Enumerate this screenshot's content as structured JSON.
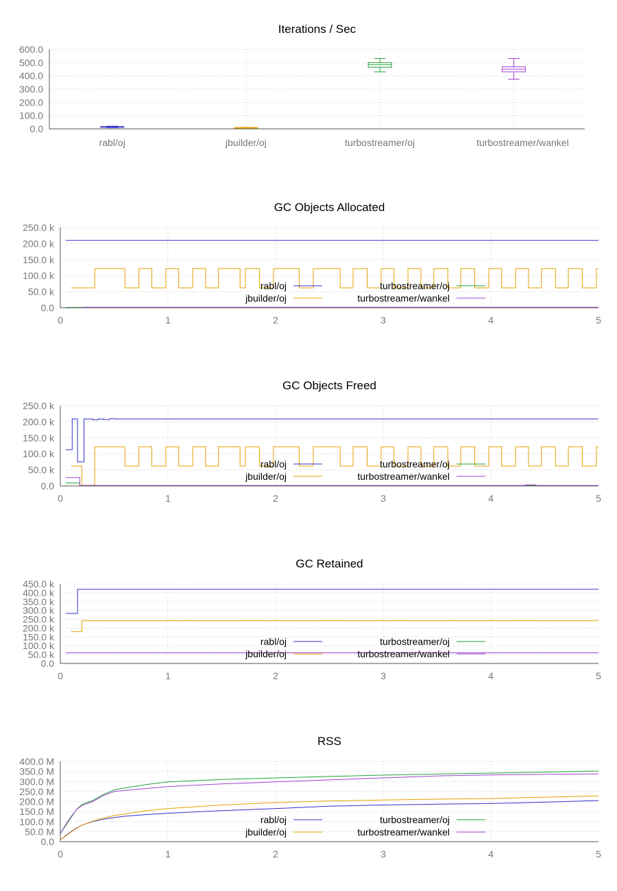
{
  "chart_data": [
    {
      "type": "box",
      "title": "Iterations / Sec",
      "categories": [
        "rabl/oj",
        "jbuilder/oj",
        "turbostreamer/oj",
        "turbostreamer/wankel"
      ],
      "colors": [
        "#3030c8",
        "#e6a000",
        "#22a035",
        "#a040d0"
      ],
      "ylim": [
        0,
        600
      ],
      "yticks": [
        "0.0",
        "100.0",
        "200.0",
        "300.0",
        "400.0",
        "500.0",
        "600.0"
      ],
      "ytick_values": [
        0,
        100,
        200,
        300,
        400,
        500,
        600
      ],
      "boxes": [
        {
          "min": 10,
          "q1": 14,
          "median": 15,
          "q3": 17,
          "max": 20
        },
        {
          "min": 7,
          "q1": 8,
          "median": 9,
          "q3": 10,
          "max": 11
        },
        {
          "min": 430,
          "q1": 465,
          "median": 485,
          "q3": 500,
          "max": 530
        },
        {
          "min": 375,
          "q1": 430,
          "median": 450,
          "q3": 468,
          "max": 530
        }
      ]
    },
    {
      "type": "line",
      "title": "GC Objects Allocated",
      "xlim": [
        0,
        5
      ],
      "xticks": [
        "0",
        "1",
        "2",
        "3",
        "4",
        "5"
      ],
      "ylim": [
        0,
        250000
      ],
      "ytick_values": [
        0,
        50000,
        100000,
        150000,
        200000,
        250000
      ],
      "yticks": [
        "0.0",
        "50.0 k",
        "100.0 k",
        "150.0 k",
        "200.0 k",
        "250.0 k"
      ],
      "legend": [
        "rabl/oj",
        "jbuilder/oj",
        "turbostreamer/oj",
        "turbostreamer/wankel"
      ],
      "series": [
        {
          "name": "rabl/oj",
          "color": "#3030c8",
          "x": [
            0.05,
            5.0
          ],
          "y": [
            210000,
            210000
          ]
        },
        {
          "name": "jbuilder/oj",
          "color": "#e6a000",
          "x": [
            0.1,
            0.32,
            0.32,
            0.6,
            0.6,
            0.73,
            0.73,
            0.85,
            0.85,
            0.98,
            0.98,
            1.1,
            1.1,
            1.23,
            1.23,
            1.35,
            1.35,
            1.47,
            1.47,
            1.67,
            1.67,
            1.72,
            1.72,
            1.85,
            1.85,
            1.98,
            1.98,
            2.22,
            2.22,
            2.35,
            2.35,
            2.6,
            2.6,
            2.72,
            2.72,
            2.85,
            2.85,
            2.98,
            2.98,
            3.1,
            3.1,
            3.23,
            3.23,
            3.35,
            3.35,
            3.47,
            3.47,
            3.6,
            3.6,
            3.72,
            3.72,
            3.85,
            3.85,
            3.98,
            3.98,
            4.1,
            4.1,
            4.23,
            4.23,
            4.35,
            4.35,
            4.47,
            4.47,
            4.6,
            4.6,
            4.72,
            4.72,
            4.85,
            4.85,
            4.98,
            4.98,
            5.0
          ],
          "y": [
            62000,
            62000,
            122000,
            122000,
            62000,
            62000,
            122000,
            122000,
            62000,
            62000,
            122000,
            122000,
            62000,
            62000,
            122000,
            122000,
            62000,
            62000,
            122000,
            122000,
            62000,
            62000,
            122000,
            122000,
            62000,
            62000,
            122000,
            122000,
            62000,
            62000,
            122000,
            122000,
            62000,
            62000,
            122000,
            122000,
            62000,
            62000,
            122000,
            122000,
            62000,
            62000,
            122000,
            122000,
            62000,
            62000,
            122000,
            122000,
            62000,
            62000,
            122000,
            122000,
            62000,
            62000,
            122000,
            122000,
            62000,
            62000,
            122000,
            122000,
            62000,
            62000,
            122000,
            122000,
            62000,
            62000,
            122000,
            122000,
            62000,
            62000,
            122000,
            122000
          ]
        },
        {
          "name": "turbostreamer/oj",
          "color": "#22a035",
          "x": [
            0.05,
            5.0
          ],
          "y": [
            1000,
            1000
          ]
        },
        {
          "name": "turbostreamer/wankel",
          "color": "#a040d0",
          "x": [
            0.2,
            5.0
          ],
          "y": [
            1500,
            1500
          ]
        }
      ]
    },
    {
      "type": "line",
      "title": "GC Objects Freed",
      "xlim": [
        0,
        5
      ],
      "xticks": [
        "0",
        "1",
        "2",
        "3",
        "4",
        "5"
      ],
      "ylim": [
        0,
        250000
      ],
      "ytick_values": [
        0,
        50000,
        100000,
        150000,
        200000,
        250000
      ],
      "yticks": [
        "0.0",
        "50.0 k",
        "100.0 k",
        "150.0 k",
        "200.0 k",
        "250.0 k"
      ],
      "legend": [
        "rabl/oj",
        "jbuilder/oj",
        "turbostreamer/oj",
        "turbostreamer/wankel"
      ],
      "series": [
        {
          "name": "rabl/oj",
          "color": "#3030c8",
          "x": [
            0.05,
            0.11,
            0.11,
            0.16,
            0.16,
            0.22,
            0.22,
            0.3,
            0.3,
            0.35,
            0.35,
            0.4,
            0.4,
            0.46,
            0.46,
            0.5,
            0.5,
            5.0
          ],
          "y": [
            113000,
            113000,
            209000,
            209000,
            75000,
            75000,
            209000,
            209000,
            206000,
            206000,
            209000,
            209000,
            207000,
            207000,
            210000,
            210000,
            209000,
            209000
          ]
        },
        {
          "name": "jbuilder/oj",
          "color": "#e6a000",
          "x": [
            0.1,
            0.2,
            0.2,
            0.32,
            0.32,
            0.6,
            0.6,
            0.73,
            0.73,
            0.85,
            0.85,
            0.98,
            0.98,
            1.1,
            1.1,
            1.23,
            1.23,
            1.35,
            1.35,
            1.47,
            1.47,
            1.67,
            1.67,
            1.72,
            1.72,
            1.85,
            1.85,
            1.98,
            1.98,
            2.22,
            2.22,
            2.35,
            2.35,
            2.6,
            2.6,
            2.72,
            2.72,
            2.85,
            2.85,
            2.98,
            2.98,
            3.1,
            3.1,
            3.23,
            3.23,
            3.35,
            3.35,
            3.47,
            3.47,
            3.6,
            3.6,
            3.72,
            3.72,
            3.85,
            3.85,
            3.98,
            3.98,
            4.1,
            4.1,
            4.23,
            4.23,
            4.35,
            4.35,
            4.47,
            4.47,
            4.6,
            4.6,
            4.72,
            4.72,
            4.85,
            4.85,
            4.98,
            4.98,
            5.0
          ],
          "y": [
            62000,
            62000,
            2000,
            2000,
            122000,
            122000,
            62000,
            62000,
            122000,
            122000,
            62000,
            62000,
            122000,
            122000,
            62000,
            62000,
            122000,
            122000,
            62000,
            62000,
            122000,
            122000,
            62000,
            62000,
            122000,
            122000,
            62000,
            62000,
            122000,
            122000,
            62000,
            62000,
            122000,
            122000,
            62000,
            62000,
            122000,
            122000,
            62000,
            62000,
            122000,
            122000,
            62000,
            62000,
            122000,
            122000,
            62000,
            62000,
            122000,
            122000,
            62000,
            62000,
            122000,
            122000,
            62000,
            62000,
            122000,
            122000,
            62000,
            62000,
            122000,
            122000,
            62000,
            62000,
            122000,
            122000,
            62000,
            62000,
            122000,
            122000,
            62000,
            62000,
            122000,
            122000
          ]
        },
        {
          "name": "turbostreamer/oj",
          "color": "#22a035",
          "x": [
            0.05,
            0.18,
            0.18,
            5.0
          ],
          "y": [
            9000,
            9000,
            1000,
            1000
          ]
        },
        {
          "name": "turbostreamer/wankel",
          "color": "#a040d0",
          "x": [
            0.05,
            0.18,
            0.18,
            4.32,
            4.32,
            4.42,
            4.42,
            5.0
          ],
          "y": [
            26000,
            26000,
            1500,
            1500,
            3500,
            3500,
            1500,
            1500
          ]
        }
      ]
    },
    {
      "type": "line",
      "title": "GC Retained",
      "xlim": [
        0,
        5
      ],
      "xticks": [
        "0",
        "1",
        "2",
        "3",
        "4",
        "5"
      ],
      "ylim": [
        0,
        450000
      ],
      "ytick_values": [
        0,
        50000,
        100000,
        150000,
        200000,
        250000,
        300000,
        350000,
        400000,
        450000
      ],
      "yticks": [
        "0.0",
        "50.0 k",
        "100.0 k",
        "150.0 k",
        "200.0 k",
        "250.0 k",
        "300.0 k",
        "350.0 k",
        "400.0 k",
        "450.0 k"
      ],
      "legend": [
        "rabl/oj",
        "jbuilder/oj",
        "turbostreamer/oj",
        "turbostreamer/wankel"
      ],
      "series": [
        {
          "name": "rabl/oj",
          "color": "#3030c8",
          "x": [
            0.05,
            0.16,
            0.16,
            5.0
          ],
          "y": [
            283000,
            283000,
            420000,
            420000
          ]
        },
        {
          "name": "jbuilder/oj",
          "color": "#e6a000",
          "x": [
            0.1,
            0.2,
            0.2,
            5.0
          ],
          "y": [
            180000,
            180000,
            242000,
            242000
          ]
        },
        {
          "name": "turbostreamer/oj",
          "color": "#22a035",
          "x": [
            0.05,
            5.0
          ],
          "y": [
            60000,
            60000
          ]
        },
        {
          "name": "turbostreamer/wankel",
          "color": "#a040d0",
          "x": [
            0.05,
            5.0
          ],
          "y": [
            60000,
            60000
          ]
        }
      ]
    },
    {
      "type": "line",
      "title": "RSS",
      "xlim": [
        0,
        5
      ],
      "xticks": [
        "0",
        "1",
        "2",
        "3",
        "4",
        "5"
      ],
      "ylim": [
        0,
        400
      ],
      "ytick_values": [
        0,
        50,
        100,
        150,
        200,
        250,
        300,
        350,
        400
      ],
      "yticks": [
        "0.0",
        "50.0 M",
        "100.0 M",
        "150.0 M",
        "200.0 M",
        "250.0 M",
        "300.0 M",
        "350.0 M",
        "400.0 M"
      ],
      "legend": [
        "rabl/oj",
        "jbuilder/oj",
        "turbostreamer/oj",
        "turbostreamer/wankel"
      ],
      "series": [
        {
          "name": "rabl/oj",
          "color": "#3030c8",
          "x": [
            0.0,
            0.05,
            0.1,
            0.15,
            0.2,
            0.3,
            0.4,
            0.5,
            0.6,
            0.8,
            1.0,
            1.5,
            2.0,
            2.5,
            3.0,
            3.5,
            4.0,
            4.5,
            5.0
          ],
          "y": [
            10,
            30,
            50,
            68,
            82,
            100,
            112,
            120,
            127,
            135,
            142,
            155,
            165,
            177,
            183,
            187,
            190,
            197,
            205
          ]
        },
        {
          "name": "jbuilder/oj",
          "color": "#e6a000",
          "x": [
            0.0,
            0.05,
            0.1,
            0.15,
            0.2,
            0.3,
            0.4,
            0.5,
            0.6,
            0.8,
            1.0,
            1.5,
            2.0,
            2.5,
            3.0,
            3.5,
            4.0,
            4.5,
            5.0
          ],
          "y": [
            10,
            28,
            48,
            66,
            82,
            102,
            118,
            130,
            138,
            155,
            165,
            183,
            195,
            203,
            208,
            212,
            215,
            222,
            228
          ]
        },
        {
          "name": "turbostreamer/oj",
          "color": "#22a035",
          "x": [
            0.0,
            0.05,
            0.1,
            0.15,
            0.2,
            0.3,
            0.4,
            0.5,
            0.6,
            0.8,
            1.0,
            1.5,
            2.0,
            2.5,
            3.0,
            3.5,
            4.0,
            4.5,
            5.0
          ],
          "y": [
            40,
            80,
            120,
            160,
            185,
            205,
            235,
            258,
            268,
            285,
            298,
            310,
            318,
            325,
            332,
            337,
            342,
            347,
            352
          ]
        },
        {
          "name": "turbostreamer/wankel",
          "color": "#a040d0",
          "x": [
            0.0,
            0.05,
            0.1,
            0.15,
            0.2,
            0.3,
            0.4,
            0.5,
            0.6,
            0.8,
            1.0,
            1.5,
            2.0,
            2.5,
            3.0,
            3.5,
            4.0,
            4.5,
            5.0
          ],
          "y": [
            40,
            85,
            125,
            160,
            180,
            200,
            230,
            250,
            256,
            265,
            275,
            288,
            298,
            308,
            318,
            328,
            333,
            336,
            338
          ]
        }
      ]
    }
  ]
}
